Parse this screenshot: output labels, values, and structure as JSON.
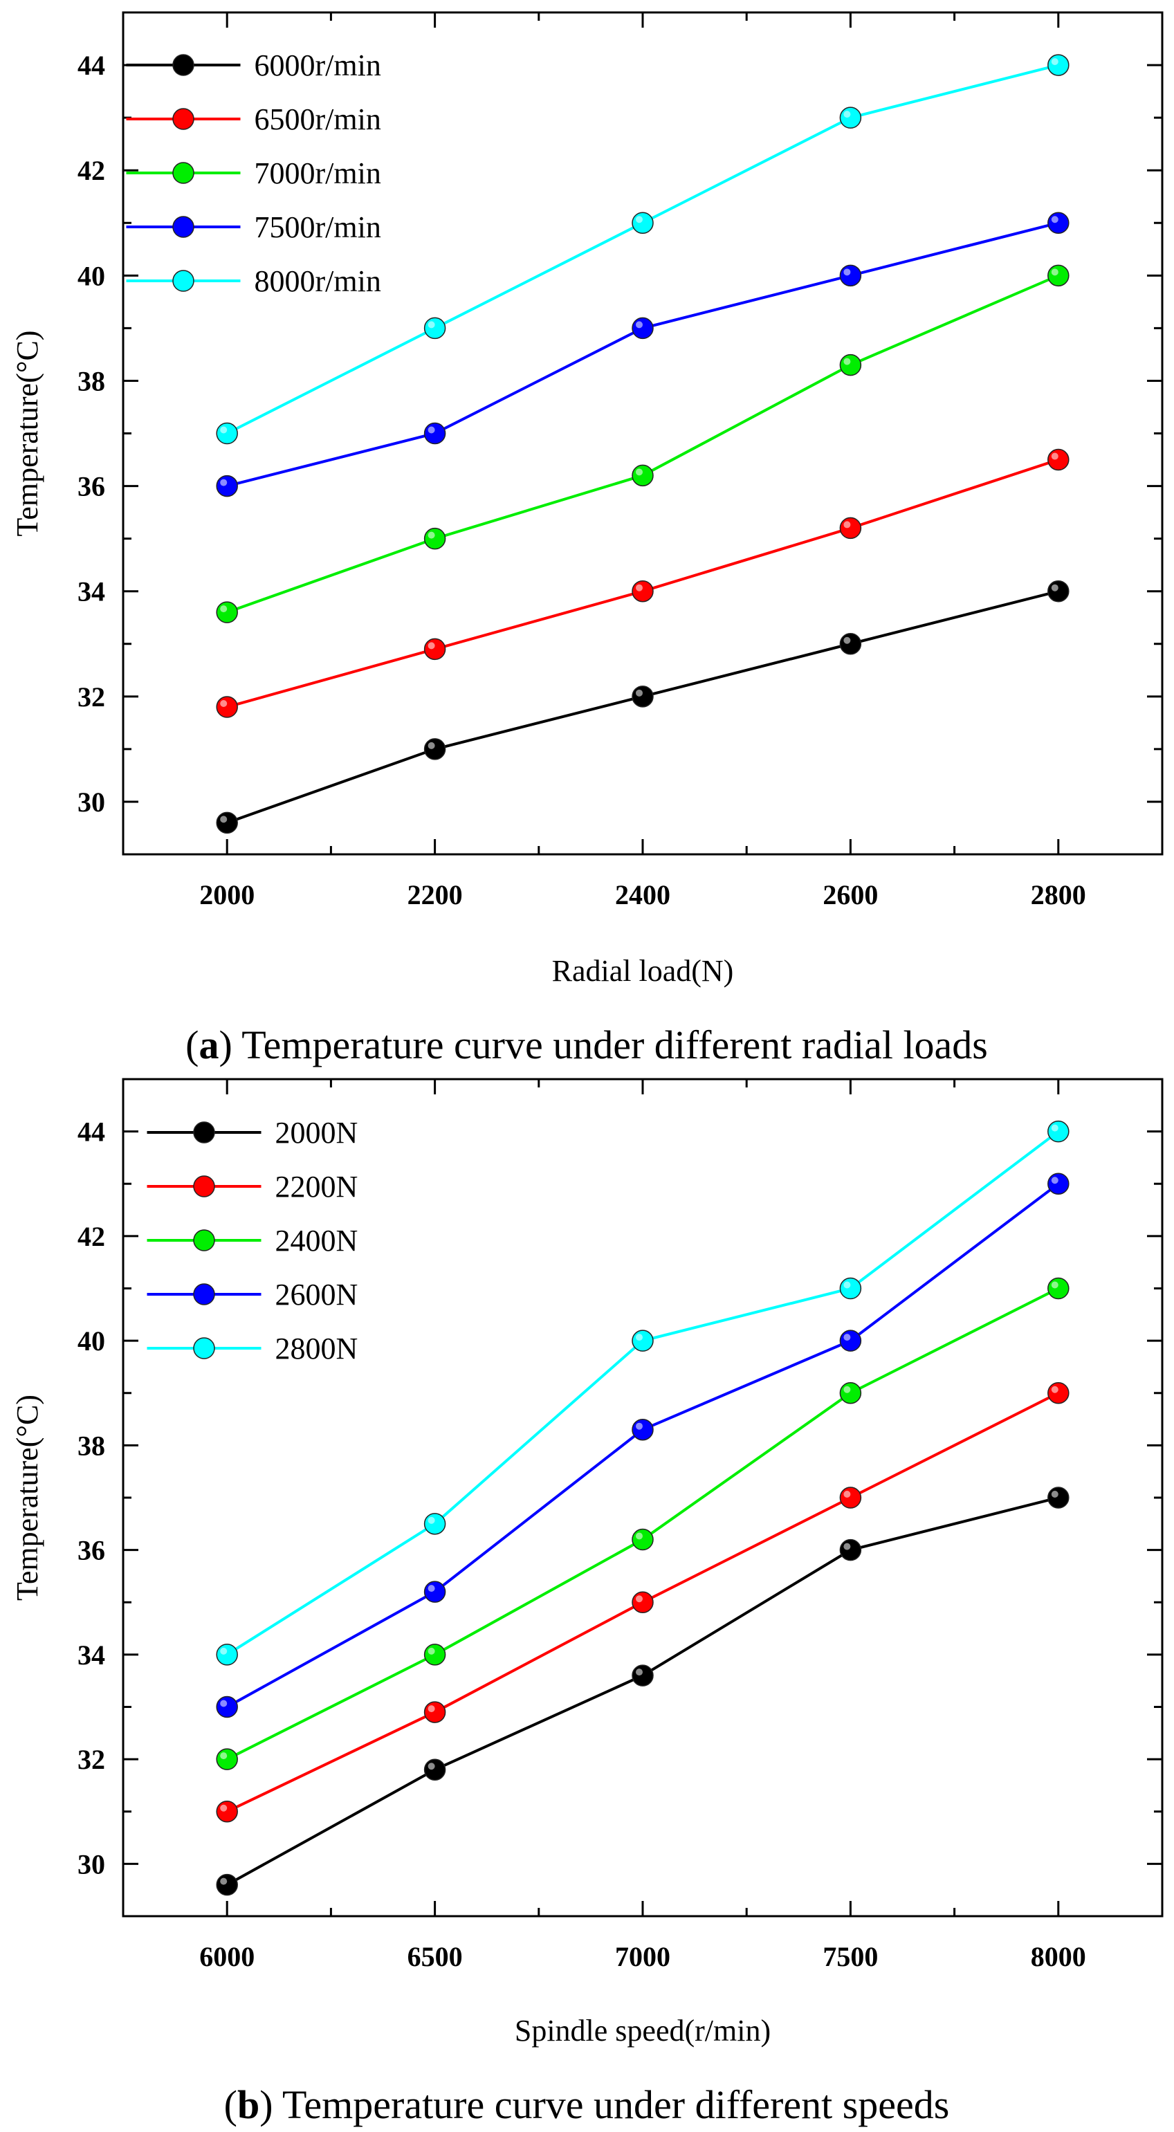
{
  "chart_data": [
    {
      "type": "line",
      "panel": "a",
      "caption_letter": "a",
      "caption_rest": " Temperature curve under different radial loads",
      "xlabel": "Radial load(N)",
      "ylabel": "Temperature(°C)",
      "x": [
        2000,
        2200,
        2400,
        2600,
        2800
      ],
      "xlim": [
        1900,
        2900
      ],
      "ylim": [
        29,
        45
      ],
      "yticks": [
        30,
        32,
        34,
        36,
        38,
        40,
        42,
        44
      ],
      "grid": false,
      "legend_position": "top-left",
      "series": [
        {
          "name": "6000r/min",
          "color": "#000000",
          "values": [
            29.6,
            31.0,
            32.0,
            33.0,
            34.0
          ]
        },
        {
          "name": "6500r/min",
          "color": "#ff0000",
          "values": [
            31.8,
            32.9,
            34.0,
            35.2,
            36.5
          ]
        },
        {
          "name": "7000r/min",
          "color": "#00ee00",
          "values": [
            33.6,
            35.0,
            36.2,
            38.3,
            40.0
          ]
        },
        {
          "name": "7500r/min",
          "color": "#0000ff",
          "values": [
            36.0,
            37.0,
            39.0,
            40.0,
            41.0
          ]
        },
        {
          "name": "8000r/min",
          "color": "#00ffff",
          "values": [
            37.0,
            39.0,
            41.0,
            43.0,
            44.0
          ]
        }
      ]
    },
    {
      "type": "line",
      "panel": "b",
      "caption_letter": "b",
      "caption_rest": " Temperature curve under different speeds",
      "xlabel": "Spindle speed(r/min)",
      "ylabel": "Temperature(°C)",
      "x": [
        6000,
        6500,
        7000,
        7500,
        8000
      ],
      "xlim": [
        5750,
        8250
      ],
      "ylim": [
        29,
        45
      ],
      "yticks": [
        30,
        32,
        34,
        36,
        38,
        40,
        42,
        44
      ],
      "grid": false,
      "legend_position": "top-left",
      "series": [
        {
          "name": "2000N",
          "color": "#000000",
          "values": [
            29.6,
            31.8,
            33.6,
            36.0,
            37.0
          ]
        },
        {
          "name": "2200N",
          "color": "#ff0000",
          "values": [
            31.0,
            32.9,
            35.0,
            37.0,
            39.0
          ]
        },
        {
          "name": "2400N",
          "color": "#00ee00",
          "values": [
            32.0,
            34.0,
            36.2,
            39.0,
            41.0
          ]
        },
        {
          "name": "2600N",
          "color": "#0000ff",
          "values": [
            33.0,
            35.2,
            38.3,
            40.0,
            43.0
          ]
        },
        {
          "name": "2800N",
          "color": "#00ffff",
          "values": [
            34.0,
            36.5,
            40.0,
            41.0,
            44.0
          ]
        }
      ]
    }
  ]
}
